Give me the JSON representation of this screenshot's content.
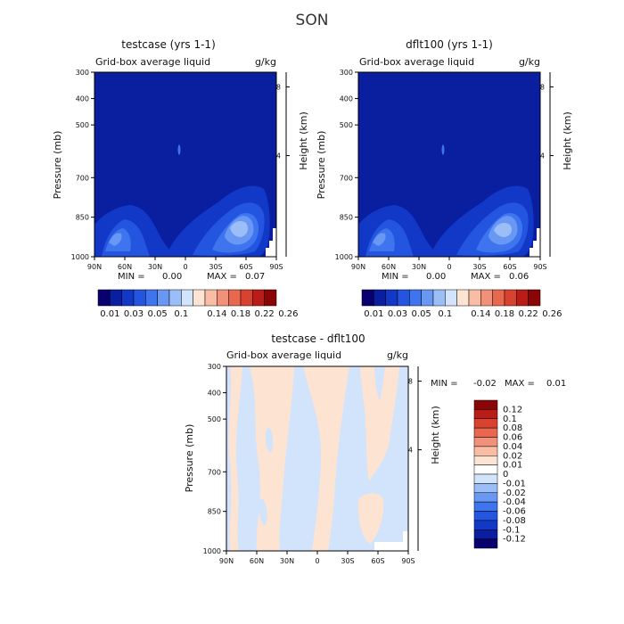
{
  "figure": {
    "title": "SON"
  },
  "chart_data": [
    {
      "type": "heatmap",
      "title": "testcase (yrs 1-1)",
      "subtitle_left": "Grid-box average liquid",
      "subtitle_right": "g/kg",
      "ylabel": "Pressure (mb)",
      "ylabel_right": "Height (km)",
      "xticks": [
        "90N",
        "60N",
        "30N",
        "0",
        "30S",
        "60S",
        "90S"
      ],
      "yticks": [
        300,
        400,
        500,
        700,
        850,
        1000
      ],
      "yticks_right": [
        8,
        4
      ],
      "ylim": [
        300,
        1000
      ],
      "stats": {
        "min_label": "MIN =",
        "min": "0.00",
        "max_label": "MAX =",
        "max": "0.07"
      },
      "colorbar": {
        "labels": [
          "0.01",
          "0.03",
          "0.05",
          "0.1",
          "0.14",
          "0.18",
          "0.22",
          "0.26"
        ],
        "colors": [
          "#08006e",
          "#0a1ea0",
          "#1238c8",
          "#2455e0",
          "#3e74ee",
          "#6898f4",
          "#9cbef8",
          "#d2e4fb",
          "#fde3d2",
          "#f9bda6",
          "#f2917a",
          "#e8674f",
          "#d8432f",
          "#b81d17",
          "#8a0606"
        ]
      }
    },
    {
      "type": "heatmap",
      "title": "dflt100 (yrs 1-1)",
      "subtitle_left": "Grid-box average liquid",
      "subtitle_right": "g/kg",
      "ylabel": "Pressure (mb)",
      "ylabel_right": "Height (km)",
      "xticks": [
        "90N",
        "60N",
        "30N",
        "0",
        "30S",
        "60S",
        "90S"
      ],
      "yticks": [
        300,
        400,
        500,
        700,
        850,
        1000
      ],
      "yticks_right": [
        8,
        4
      ],
      "ylim": [
        300,
        1000
      ],
      "stats": {
        "min_label": "MIN =",
        "min": "0.00",
        "max_label": "MAX =",
        "max": "0.06"
      },
      "colorbar": {
        "labels": [
          "0.01",
          "0.03",
          "0.05",
          "0.1",
          "0.14",
          "0.18",
          "0.22",
          "0.26"
        ],
        "colors": [
          "#08006e",
          "#0a1ea0",
          "#1238c8",
          "#2455e0",
          "#3e74ee",
          "#6898f4",
          "#9cbef8",
          "#d2e4fb",
          "#fde3d2",
          "#f9bda6",
          "#f2917a",
          "#e8674f",
          "#d8432f",
          "#b81d17",
          "#8a0606"
        ]
      }
    },
    {
      "type": "heatmap",
      "title": "testcase - dflt100",
      "subtitle_left": "Grid-box average liquid",
      "subtitle_right": "g/kg",
      "ylabel": "Pressure (mb)",
      "ylabel_right": "Height (km)",
      "xticks": [
        "90N",
        "60N",
        "30N",
        "0",
        "30S",
        "60S",
        "90S"
      ],
      "yticks": [
        300,
        400,
        500,
        700,
        850,
        1000
      ],
      "yticks_right": [
        8,
        4
      ],
      "ylim": [
        300,
        1000
      ],
      "stats": {
        "min_label": "MIN =",
        "min": "-0.02",
        "max_label": "MAX =",
        "max": "0.01"
      },
      "colorbar": {
        "labels": [
          "0.12",
          "0.1",
          "0.08",
          "0.06",
          "0.04",
          "0.02",
          "0.01",
          "0",
          "-0.01",
          "-0.02",
          "-0.04",
          "-0.06",
          "-0.08",
          "-0.1",
          "-0.12"
        ],
        "colors": [
          "#8a0606",
          "#b81d17",
          "#d8432f",
          "#e8674f",
          "#f2917a",
          "#f9bda6",
          "#fde3d2",
          "#ffffff",
          "#d2e4fb",
          "#9cbef8",
          "#6898f4",
          "#3e74ee",
          "#2455e0",
          "#1238c8",
          "#0a1ea0",
          "#08006e"
        ]
      }
    }
  ]
}
